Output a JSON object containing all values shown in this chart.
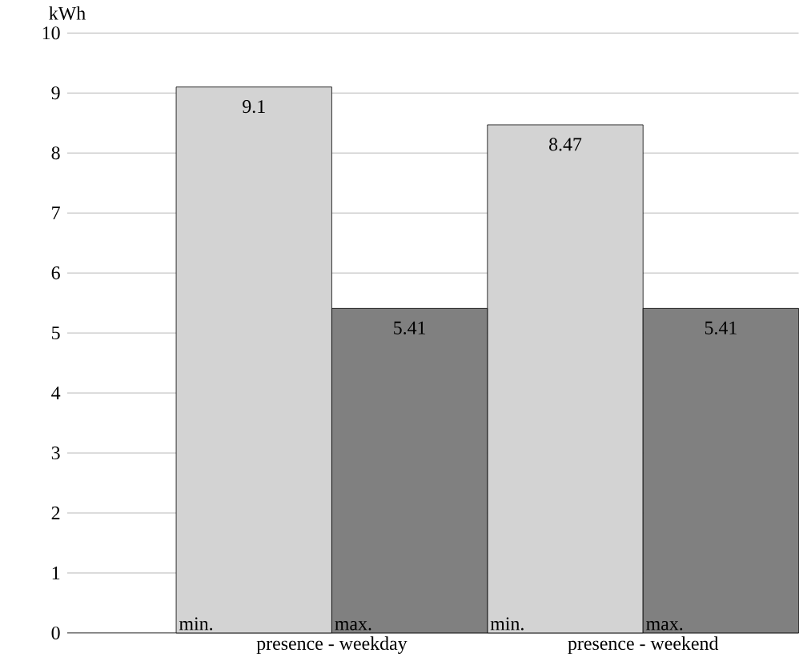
{
  "chart_data": {
    "type": "bar",
    "ylabel": "kWh",
    "categories": [
      "presence - weekday",
      "presence - weekend"
    ],
    "series": [
      {
        "name": "min.",
        "color": "#d3d3d3",
        "values": [
          9.1,
          8.47
        ]
      },
      {
        "name": "max.",
        "color": "#808080",
        "values": [
          5.41,
          5.41
        ]
      }
    ],
    "ylim": [
      0,
      10
    ],
    "yticks": [
      0,
      1,
      2,
      3,
      4,
      5,
      6,
      7,
      8,
      9,
      10
    ],
    "grid": "y",
    "data_labels": true
  }
}
